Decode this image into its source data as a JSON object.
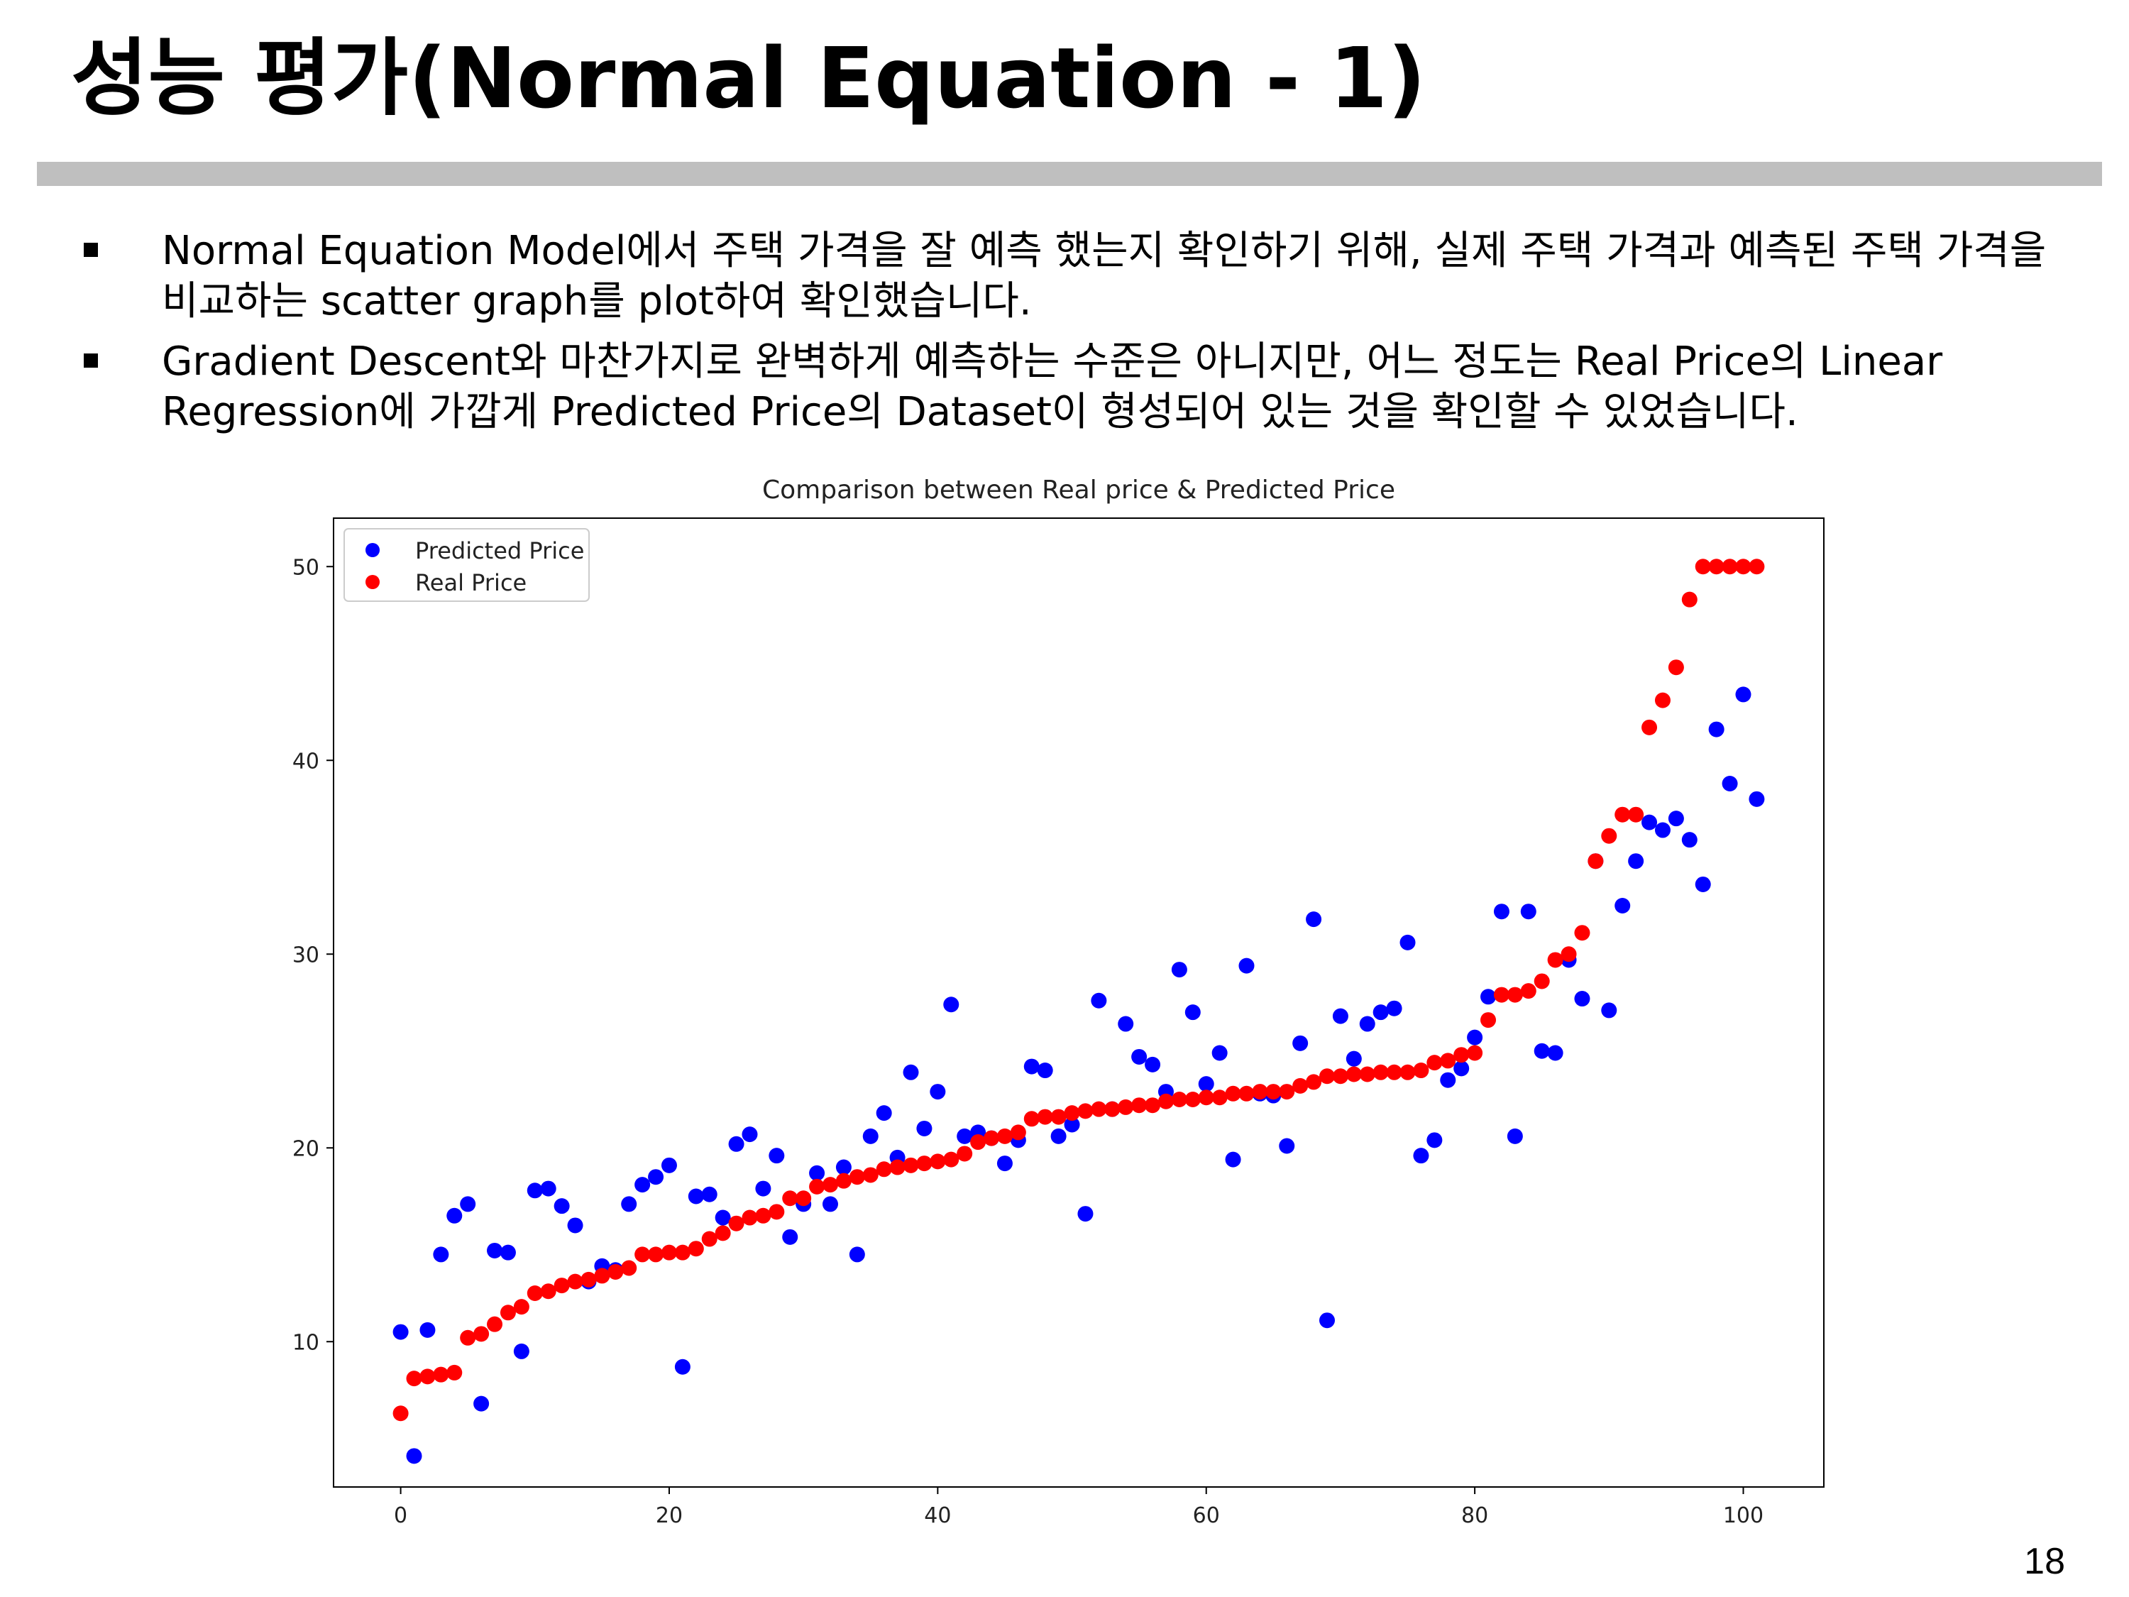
{
  "slide": {
    "title": "성능 평가(Normal Equation - 1)",
    "bullets": [
      "Normal Equation Model에서 주택 가격을 잘 예측 했는지 확인하기 위해, 실제 주택 가격과 예측된 주택 가격을 비교하는 scatter graph를 plot하여 확인했습니다.",
      "Gradient Descent와 마찬가지로 완벽하게 예측하는 수준은 아니지만, 어느 정도는 Real Price의 Linear Regression에 가깝게 Predicted Price의 Dataset이 형성되어 있는 것을 확인할 수 있었습니다."
    ],
    "page_number": "18"
  },
  "chart_data": {
    "type": "scatter",
    "title": "Comparison between Real price & Predicted Price",
    "xlabel": "",
    "ylabel": "",
    "xlim": [
      -5,
      106
    ],
    "ylim": [
      2.5,
      52.5
    ],
    "xticks": [
      0,
      20,
      40,
      60,
      80,
      100
    ],
    "yticks": [
      10,
      20,
      30,
      40,
      50
    ],
    "grid": false,
    "legend_position": "top-left",
    "series": [
      {
        "name": "Predicted Price",
        "color": "#0000ff",
        "x": [
          0,
          1,
          2,
          3,
          4,
          5,
          6,
          7,
          8,
          9,
          10,
          11,
          12,
          13,
          14,
          15,
          16,
          17,
          18,
          19,
          20,
          21,
          22,
          23,
          24,
          25,
          26,
          27,
          28,
          29,
          30,
          31,
          32,
          33,
          34,
          35,
          36,
          37,
          38,
          39,
          40,
          41,
          42,
          43,
          44,
          45,
          46,
          47,
          48,
          49,
          50,
          51,
          52,
          53,
          54,
          55,
          56,
          57,
          58,
          59,
          60,
          61,
          62,
          63,
          64,
          65,
          66,
          67,
          68,
          69,
          70,
          71,
          72,
          73,
          74,
          75,
          76,
          77,
          78,
          79,
          80,
          81,
          82,
          83,
          84,
          85,
          86,
          87,
          88,
          89,
          90,
          91,
          92,
          93,
          94,
          95,
          96,
          97,
          98,
          99,
          100,
          101
        ],
        "y": [
          10.5,
          4.1,
          10.6,
          14.5,
          16.5,
          17.1,
          6.8,
          14.7,
          14.6,
          9.5,
          17.8,
          17.9,
          17.0,
          16.0,
          13.1,
          13.9,
          13.7,
          17.1,
          18.1,
          18.5,
          19.1,
          8.7,
          17.5,
          17.6,
          16.4,
          20.2,
          20.7,
          17.9,
          19.6,
          15.4,
          17.1,
          18.7,
          17.1,
          19.0,
          14.5,
          20.6,
          21.8,
          19.5,
          23.9,
          21.0,
          22.9,
          27.4,
          20.6,
          20.8,
          20.5,
          19.2,
          20.4,
          24.2,
          24.0,
          20.6,
          21.2,
          16.6,
          27.6,
          22.0,
          26.4,
          24.7,
          24.3,
          22.9,
          29.2,
          27.0,
          23.3,
          24.9,
          19.4,
          29.4,
          22.8,
          22.7,
          20.1,
          25.4,
          31.8,
          11.1,
          26.8,
          24.6,
          26.4,
          27.0,
          27.2,
          30.6,
          19.6,
          20.4,
          23.5,
          24.1,
          25.7,
          27.8,
          32.2,
          20.6,
          32.2,
          25.0,
          24.9,
          29.7,
          27.7,
          34.8,
          27.1,
          32.5,
          34.8,
          36.8,
          36.4,
          37.0,
          35.9,
          33.6,
          41.6,
          38.8,
          43.4,
          38.0
        ]
      },
      {
        "name": "Real Price",
        "color": "#ff0000",
        "x": [
          0,
          1,
          2,
          3,
          4,
          5,
          6,
          7,
          8,
          9,
          10,
          11,
          12,
          13,
          14,
          15,
          16,
          17,
          18,
          19,
          20,
          21,
          22,
          23,
          24,
          25,
          26,
          27,
          28,
          29,
          30,
          31,
          32,
          33,
          34,
          35,
          36,
          37,
          38,
          39,
          40,
          41,
          42,
          43,
          44,
          45,
          46,
          47,
          48,
          49,
          50,
          51,
          52,
          53,
          54,
          55,
          56,
          57,
          58,
          59,
          60,
          61,
          62,
          63,
          64,
          65,
          66,
          67,
          68,
          69,
          70,
          71,
          72,
          73,
          74,
          75,
          76,
          77,
          78,
          79,
          80,
          81,
          82,
          83,
          84,
          85,
          86,
          87,
          88,
          89,
          90,
          91,
          92,
          93,
          94,
          95,
          96,
          97,
          98,
          99,
          100,
          101
        ],
        "y": [
          6.3,
          8.1,
          8.2,
          8.3,
          8.4,
          10.2,
          10.4,
          10.9,
          11.5,
          11.8,
          12.5,
          12.6,
          12.9,
          13.1,
          13.2,
          13.4,
          13.6,
          13.8,
          14.5,
          14.5,
          14.6,
          14.6,
          14.8,
          15.3,
          15.6,
          16.1,
          16.4,
          16.5,
          16.7,
          17.4,
          17.4,
          18.0,
          18.1,
          18.3,
          18.5,
          18.6,
          18.9,
          19.0,
          19.1,
          19.2,
          19.3,
          19.4,
          19.7,
          20.3,
          20.5,
          20.6,
          20.8,
          21.5,
          21.6,
          21.6,
          21.8,
          21.9,
          22.0,
          22.0,
          22.1,
          22.2,
          22.2,
          22.4,
          22.5,
          22.5,
          22.6,
          22.6,
          22.8,
          22.8,
          22.9,
          22.9,
          22.9,
          23.2,
          23.4,
          23.7,
          23.7,
          23.8,
          23.8,
          23.9,
          23.9,
          23.9,
          24.0,
          24.4,
          24.5,
          24.8,
          24.9,
          26.6,
          27.9,
          27.9,
          28.1,
          28.6,
          29.7,
          30.0,
          31.1,
          34.8,
          36.1,
          37.2,
          37.2,
          41.7,
          43.1,
          44.8,
          48.3,
          50.0,
          50.0,
          50.0,
          50.0,
          50.0
        ]
      }
    ]
  }
}
